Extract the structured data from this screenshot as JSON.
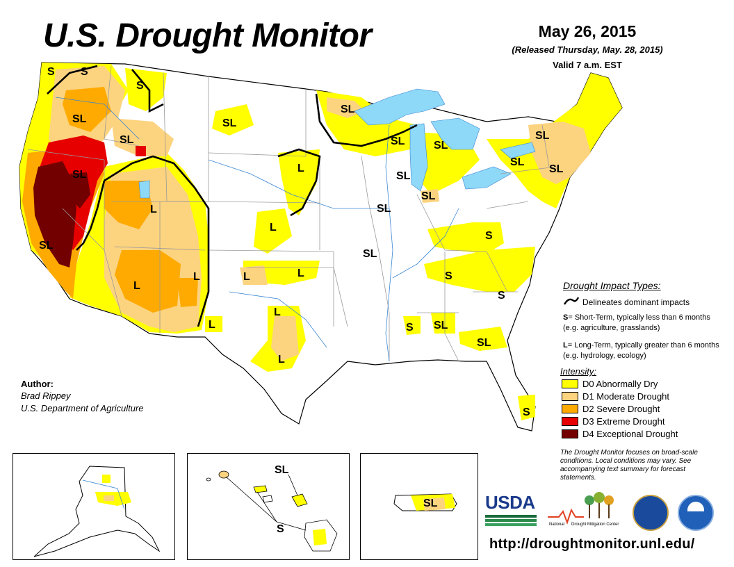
{
  "header": {
    "title": "U.S. Drought Monitor",
    "date": "May 26, 2015",
    "released": "(Released Thursday, May. 28, 2015)",
    "valid": "Valid 7 a.m. EST"
  },
  "map": {
    "labels": [
      "S",
      "S",
      "S",
      "SL",
      "SL",
      "SL",
      "SL",
      "SL",
      "L",
      "L",
      "L",
      "L",
      "L",
      "L",
      "L",
      "L",
      "L",
      "SL",
      "L",
      "SL",
      "SL",
      "SL",
      "SL",
      "SL",
      "SL",
      "SL",
      "SL",
      "SL",
      "S",
      "S",
      "S",
      "S",
      "SL",
      "SL",
      "S"
    ]
  },
  "impact_types": {
    "title": "Drought Impact Types:",
    "delineates": "Delineates dominant impacts",
    "short_term_symbol": "S",
    "short_term_text": "= Short-Term, typically less than 6 months (e.g. agriculture, grasslands)",
    "long_term_symbol": "L",
    "long_term_text": "= Long-Term, typically greater than 6 months (e.g. hydrology, ecology)"
  },
  "intensity": {
    "title": "Intensity:",
    "levels": [
      {
        "label": "D0 Abnormally Dry",
        "color": "#FFFF00"
      },
      {
        "label": "D1 Moderate Drought",
        "color": "#FCD37F"
      },
      {
        "label": "D2 Severe Drought",
        "color": "#FFAA00"
      },
      {
        "label": "D3 Extreme Drought",
        "color": "#E60000"
      },
      {
        "label": "D4 Exceptional Drought",
        "color": "#730000"
      }
    ]
  },
  "note": "The Drought Monitor focuses on broad-scale conditions. Local conditions may vary. See accompanying text summary for forecast statements.",
  "author": {
    "heading": "Author:",
    "name": "Brad Rippey",
    "org": "U.S. Department of Agriculture"
  },
  "insets": {
    "hawaii_labels": [
      "SL",
      "S"
    ],
    "puerto_rico_label": "SL"
  },
  "logos": {
    "usda": "USDA",
    "ndmc_line1": "National",
    "ndmc_line2": "Drought Mitigation Center"
  },
  "url": "http://droughtmonitor.unl.edu/",
  "colors": {
    "water": "#8ED8F8",
    "state_line": "#9a9a9a",
    "river": "#3a86d4",
    "border": "#000000"
  }
}
